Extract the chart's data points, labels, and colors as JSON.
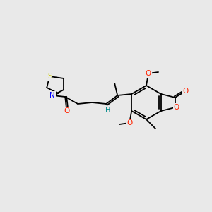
{
  "background_color": "#e9e9e9",
  "bond_color": "#000000",
  "atom_colors": {
    "S": "#cccc00",
    "N": "#0000ff",
    "O": "#ff2200",
    "H": "#008888",
    "C": "#000000"
  },
  "figsize": [
    3.0,
    3.0
  ],
  "dpi": 100,
  "lw": 1.3,
  "fs": 7.5
}
